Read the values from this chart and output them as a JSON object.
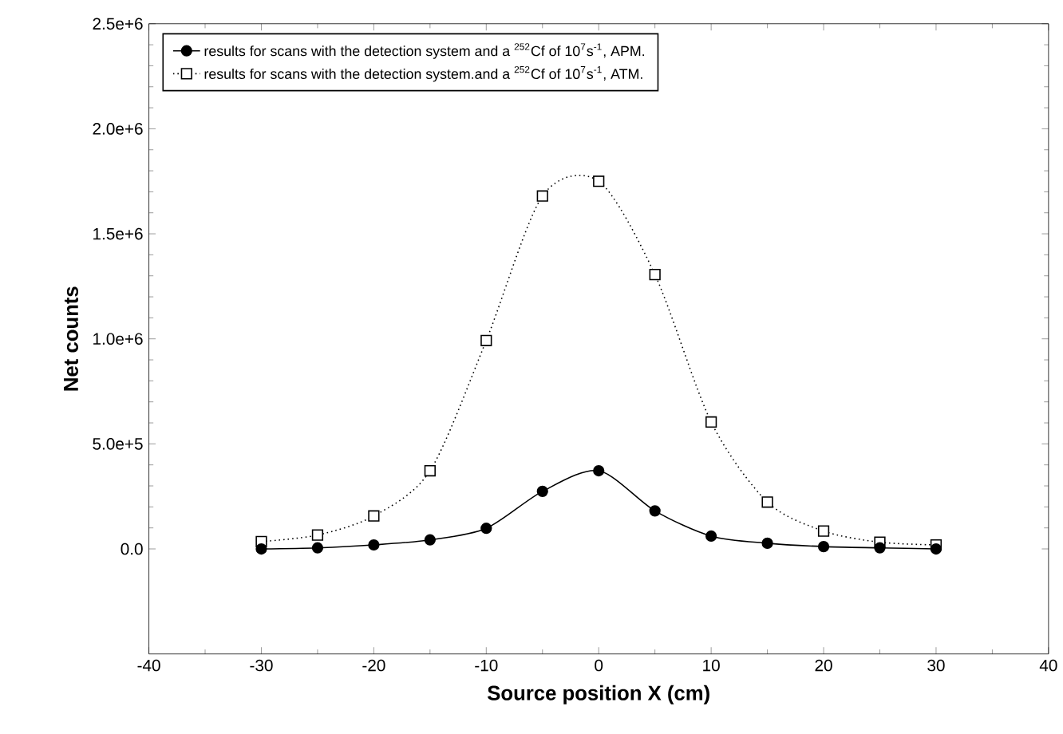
{
  "chart_data": {
    "type": "line",
    "xlabel": "Source position X (cm)",
    "ylabel": "Net counts",
    "xlim": [
      -40,
      40
    ],
    "ylim": [
      -500000,
      2500000
    ],
    "xticks": [
      -40,
      -30,
      -20,
      -10,
      0,
      10,
      20,
      30,
      40
    ],
    "yticks": [
      {
        "value": 0,
        "label": "0.0"
      },
      {
        "value": 500000,
        "label": "5.0e+5"
      },
      {
        "value": 1000000,
        "label": "1.0e+6"
      },
      {
        "value": 1500000,
        "label": "1.5e+6"
      },
      {
        "value": 2000000,
        "label": "2.0e+6"
      },
      {
        "value": 2500000,
        "label": "2.5e+6"
      }
    ],
    "x": [
      -30,
      -25,
      -20,
      -15,
      -10,
      -5,
      0,
      5,
      10,
      15,
      20,
      25,
      30
    ],
    "series": [
      {
        "name": "results for scans with the detection system and a $^{252}$Cf of 10$^{7}$s$^{-1}$, APM.",
        "color": "#000000",
        "marker": "circle",
        "line_style": "solid",
        "values": [
          0,
          5000,
          19000,
          43000,
          98000,
          274000,
          372000,
          181000,
          61000,
          27000,
          11000,
          5000,
          0
        ]
      },
      {
        "name": "results for scans with the detection system.and a $^{252}$Cf of 10$^{7}$s$^{-1}$, ATM.",
        "color": "#000000",
        "marker": "square",
        "line_style": "dotted",
        "values": [
          35000,
          66000,
          157000,
          372000,
          992000,
          1680000,
          1750000,
          1306000,
          604000,
          223000,
          85000,
          32000,
          19000
        ]
      }
    ],
    "legend": "top left",
    "grid": false
  }
}
